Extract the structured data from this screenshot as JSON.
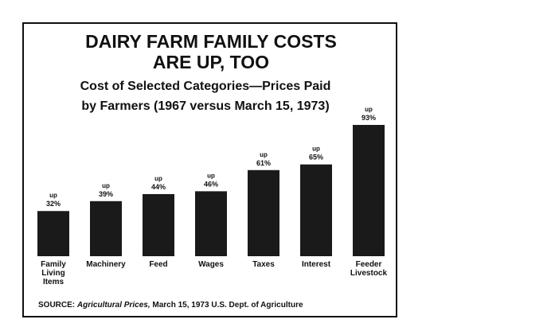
{
  "chart_data": {
    "type": "bar",
    "title": [
      "DAIRY FARM FAMILY COSTS",
      "ARE UP, TOO"
    ],
    "subtitle": [
      "Cost of Selected Categories—Prices Paid",
      "by Farmers (1967 versus March 15, 1973)"
    ],
    "categories": [
      "Family Living Items",
      "Machinery",
      "Feed",
      "Wages",
      "Taxes",
      "Interest",
      "Feeder Livestock"
    ],
    "values": [
      32,
      39,
      44,
      46,
      61,
      65,
      93
    ],
    "value_labels": [
      "32%",
      "39%",
      "44%",
      "46%",
      "61%",
      "65%",
      "93%"
    ],
    "value_label_prefix": "up",
    "color": "#1a1a1a",
    "source": {
      "label": "SOURCE:",
      "publication": "Agricultural Prices,",
      "rest": "March 15, 1973 U.S. Dept. of Agriculture"
    }
  }
}
